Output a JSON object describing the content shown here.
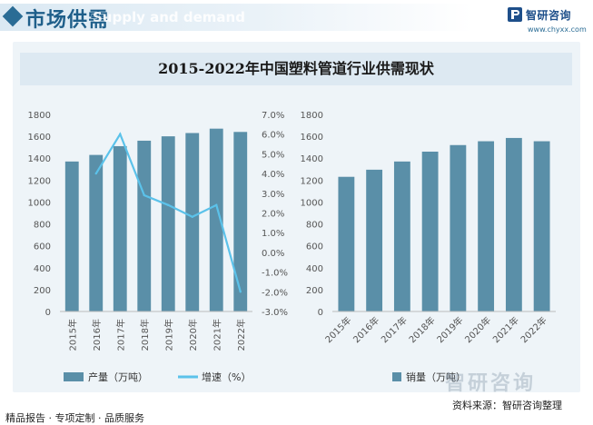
{
  "header": {
    "title": "市场供需",
    "subtitle_en": "Supply and demand"
  },
  "brand": {
    "name": "智研咨询",
    "url": "www.chyxx.com"
  },
  "watermark": "智研咨询",
  "colors": {
    "bar": "#5a8fa8",
    "line": "#5bc2ea",
    "accent": "#2a6c95"
  },
  "chart_data": [
    {
      "type": "bar",
      "title": "2015-2022年中国塑料管道行业供需现状",
      "categories": [
        "2015年",
        "2016年",
        "2017年",
        "2018年",
        "2019年",
        "2020年",
        "2021年",
        "2022年"
      ],
      "series": [
        {
          "name": "产量（万吨）",
          "type": "bar",
          "axis": "left",
          "values": [
            1370,
            1430,
            1510,
            1560,
            1600,
            1630,
            1670,
            1640
          ]
        },
        {
          "name": "增速（%）",
          "type": "line",
          "axis": "right",
          "values": [
            null,
            4.0,
            6.0,
            2.9,
            2.4,
            1.8,
            2.4,
            -2.0
          ]
        }
      ],
      "y_left": {
        "min": 0,
        "max": 1800,
        "step": 200,
        "ticks": [
          "0",
          "200",
          "400",
          "600",
          "800",
          "1000",
          "1200",
          "1400",
          "1600",
          "1800"
        ]
      },
      "y_right": {
        "min": -3.0,
        "max": 7.0,
        "step": 1.0,
        "ticks": [
          "-3.0%",
          "-2.0%",
          "-1.0%",
          "0.0%",
          "1.0%",
          "2.0%",
          "3.0%",
          "4.0%",
          "5.0%",
          "6.0%",
          "7.0%"
        ]
      },
      "legend_position": "bottom"
    },
    {
      "type": "bar",
      "categories": [
        "2015年",
        "2016年",
        "2017年",
        "2018年",
        "2019年",
        "2020年",
        "2021年",
        "2022年"
      ],
      "series": [
        {
          "name": "销量（万吨）",
          "values": [
            1230,
            1295,
            1370,
            1460,
            1520,
            1555,
            1585,
            1555
          ]
        }
      ],
      "y_left": {
        "min": 0,
        "max": 1800,
        "step": 200,
        "ticks": [
          "0",
          "200",
          "400",
          "600",
          "800",
          "1000",
          "1200",
          "1400",
          "1600",
          "1800"
        ]
      },
      "legend_position": "bottom"
    }
  ],
  "footer": {
    "left": "精品报告 · 专项定制 · 品质服务",
    "right": "资料来源：智研咨询整理"
  }
}
